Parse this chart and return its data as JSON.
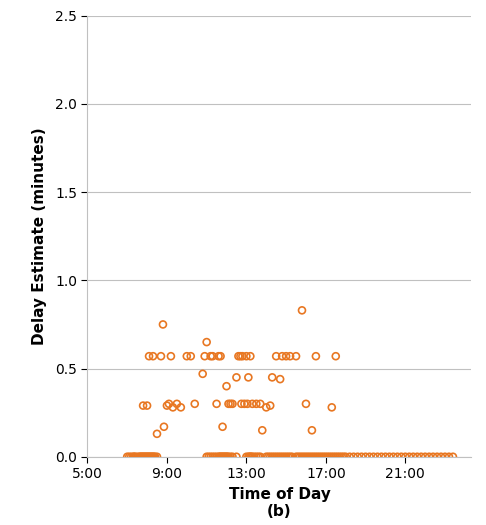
{
  "scatter_x": [
    7.8,
    8.0,
    8.1,
    8.3,
    8.5,
    8.7,
    8.8,
    8.85,
    9.0,
    9.1,
    9.2,
    9.3,
    9.5,
    9.7,
    10.0,
    10.2,
    10.4,
    10.8,
    10.9,
    11.0,
    11.2,
    11.3,
    11.5,
    11.6,
    11.7,
    11.8,
    12.0,
    12.1,
    12.2,
    12.3,
    12.5,
    12.6,
    12.7,
    12.75,
    12.8,
    12.9,
    13.0,
    13.05,
    13.1,
    13.2,
    13.3,
    13.5,
    13.7,
    13.8,
    14.0,
    14.2,
    14.3,
    14.5,
    14.7,
    14.8,
    15.0,
    15.2,
    15.5,
    15.8,
    16.0,
    16.3,
    16.5,
    17.3,
    17.5,
    7.0,
    7.1,
    7.2,
    7.3,
    7.35,
    7.4,
    7.5,
    7.6,
    7.65,
    7.7,
    7.75,
    7.8,
    7.85,
    7.9,
    7.95,
    8.0,
    8.05,
    8.1,
    8.15,
    8.2,
    8.25,
    8.3,
    8.35,
    8.4,
    8.5,
    11.0,
    11.1,
    11.2,
    11.3,
    11.4,
    11.5,
    11.6,
    11.65,
    11.7,
    11.75,
    11.8,
    11.85,
    11.9,
    11.95,
    12.0,
    12.05,
    12.1,
    12.2,
    12.3,
    12.5,
    13.0,
    13.1,
    13.15,
    13.2,
    13.25,
    13.3,
    13.4,
    13.5,
    13.6,
    13.7,
    14.0,
    14.1,
    14.2,
    14.3,
    14.4,
    14.5,
    14.6,
    14.7,
    14.8,
    14.9,
    15.0,
    15.1,
    15.2,
    15.3,
    15.5,
    15.6,
    15.7,
    15.8,
    15.9,
    16.0,
    16.1,
    16.2,
    16.3,
    16.4,
    16.5,
    16.6,
    16.7,
    16.8,
    16.9,
    17.0,
    17.1,
    17.2,
    17.3,
    17.4,
    17.5,
    17.6,
    17.7,
    17.8,
    17.9,
    18.0,
    18.2,
    18.4,
    18.6,
    18.8,
    19.0,
    19.2,
    19.4,
    19.6,
    19.8,
    20.0,
    20.2,
    20.4,
    20.6,
    20.8,
    21.0,
    21.2,
    21.4,
    21.6,
    21.8,
    22.0,
    22.2,
    22.4,
    22.6,
    22.8,
    23.0,
    23.2,
    23.4
  ],
  "scatter_y": [
    0.29,
    0.29,
    0.57,
    0.57,
    0.13,
    0.57,
    0.75,
    0.17,
    0.29,
    0.3,
    0.57,
    0.28,
    0.3,
    0.28,
    0.57,
    0.57,
    0.3,
    0.47,
    0.57,
    0.65,
    0.57,
    0.57,
    0.3,
    0.57,
    0.57,
    0.17,
    0.4,
    0.3,
    0.3,
    0.3,
    0.45,
    0.57,
    0.57,
    0.3,
    0.57,
    0.3,
    0.57,
    0.3,
    0.45,
    0.57,
    0.3,
    0.3,
    0.3,
    0.15,
    0.28,
    0.29,
    0.45,
    0.57,
    0.44,
    0.57,
    0.57,
    0.57,
    0.57,
    0.83,
    0.3,
    0.15,
    0.57,
    0.28,
    0.57,
    0.0,
    0.0,
    0.0,
    0.0,
    0.0,
    0.0,
    0.0,
    0.0,
    0.0,
    0.0,
    0.0,
    0.0,
    0.0,
    0.0,
    0.0,
    0.0,
    0.0,
    0.0,
    0.0,
    0.0,
    0.0,
    0.0,
    0.0,
    0.0,
    0.0,
    0.0,
    0.0,
    0.0,
    0.0,
    0.0,
    0.0,
    0.0,
    0.0,
    0.0,
    0.0,
    0.0,
    0.0,
    0.0,
    0.0,
    0.0,
    0.0,
    0.0,
    0.0,
    0.0,
    0.0,
    0.0,
    0.0,
    0.0,
    0.0,
    0.0,
    0.0,
    0.0,
    0.0,
    0.0,
    0.0,
    0.0,
    0.0,
    0.0,
    0.0,
    0.0,
    0.0,
    0.0,
    0.0,
    0.0,
    0.0,
    0.0,
    0.0,
    0.0,
    0.0,
    0.0,
    0.0,
    0.0,
    0.0,
    0.0,
    0.0,
    0.0,
    0.0,
    0.0,
    0.0,
    0.0,
    0.0,
    0.0,
    0.0,
    0.0,
    0.0,
    0.0,
    0.0,
    0.0,
    0.0,
    0.0,
    0.0,
    0.0,
    0.0,
    0.0,
    0.0,
    0.0,
    0.0,
    0.0,
    0.0,
    0.0,
    0.0,
    0.0,
    0.0,
    0.0,
    0.0,
    0.0,
    0.0,
    0.0,
    0.0,
    0.0,
    0.0,
    0.0,
    0.0,
    0.0,
    0.0,
    0.0,
    0.0,
    0.0,
    0.0,
    0.0,
    0.0,
    0.0
  ],
  "marker_color": "#E87722",
  "marker_edge_color": "#E87722",
  "marker_size": 5,
  "xlabel": "Time of Day",
  "xlabel_sub": "(b)",
  "ylabel": "Delay Estimate (minutes)",
  "xlim_start_hour": 5.0,
  "xlim_end_hour": 24.33,
  "ylim": [
    0.0,
    2.5
  ],
  "xtick_hours": [
    5,
    9,
    13,
    17,
    21
  ],
  "xtick_labels": [
    "5:00",
    "9:00",
    "13:00",
    "17:00",
    "21:00"
  ],
  "ytick_values": [
    0.0,
    0.5,
    1.0,
    1.5,
    2.0,
    2.5
  ],
  "ytick_labels": [
    "0.0",
    "0.5",
    "1.0",
    "1.5",
    "2.0",
    "2.5"
  ],
  "grid_color": "#C0C0C0",
  "background_color": "#FFFFFF"
}
